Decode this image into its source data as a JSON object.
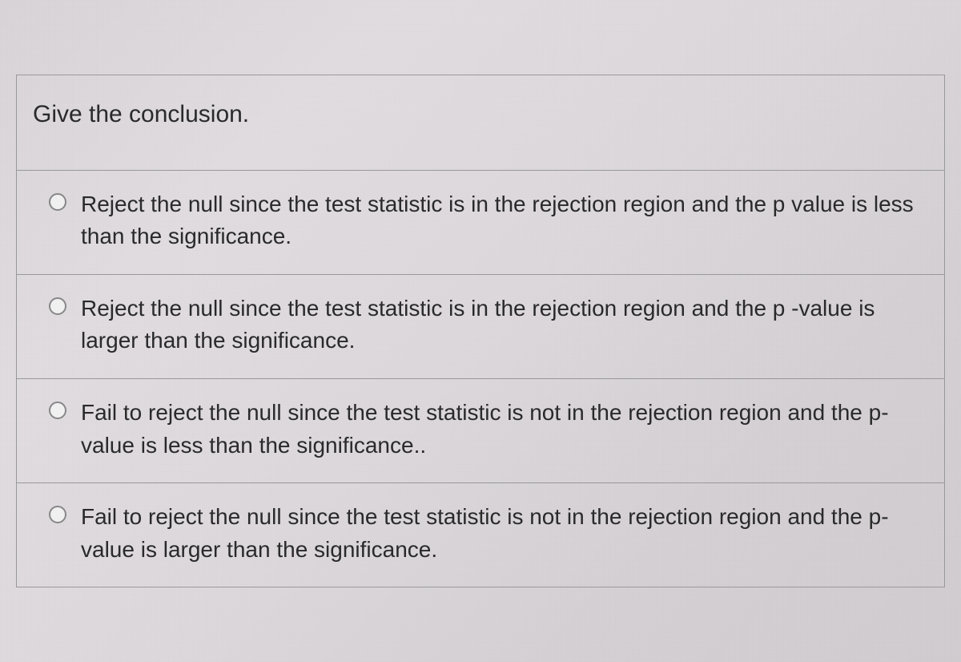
{
  "background_gradient": [
    "#d8d4d8",
    "#e0dce0",
    "#dcd8dc",
    "#d4d0d4",
    "#d0ccd0"
  ],
  "card_border_color": "#999999",
  "text_color": "#2a2a2a",
  "radio_border_color": "#888888",
  "radio_fill_color": "#f0f0f0",
  "font_family": "Segoe UI",
  "prompt_fontsize": 30,
  "option_fontsize": 28,
  "question": {
    "prompt": "Give the conclusion.",
    "options": [
      {
        "id": "opt-a",
        "text": "Reject the null since the test statistic is in the rejection region and the p value is less than the significance.",
        "selected": false
      },
      {
        "id": "opt-b",
        "text": "Reject the null since the test statistic is in the rejection region and the p -value is larger than the significance.",
        "selected": false
      },
      {
        "id": "opt-c",
        "text": "Fail to reject the null since the test statistic is not in the rejection region and the p-value is less than the significance..",
        "selected": false
      },
      {
        "id": "opt-d",
        "text": "Fail to reject the null since the test statistic is not in the rejection region and the p-value is larger than the significance.",
        "selected": false
      }
    ]
  }
}
